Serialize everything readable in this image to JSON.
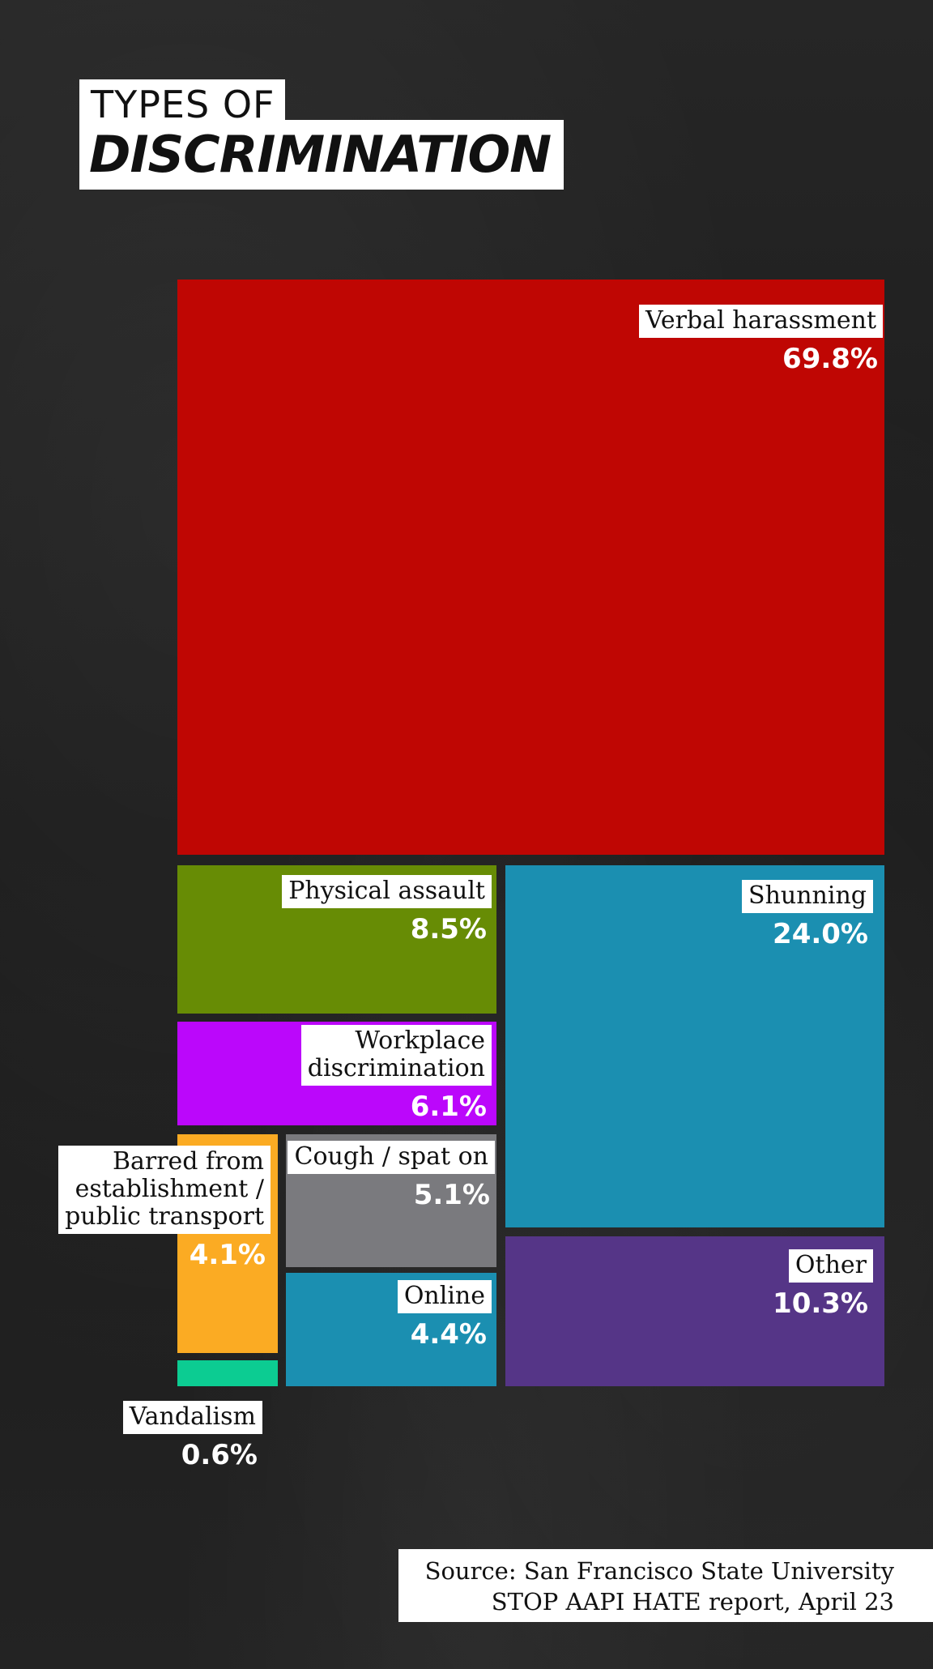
{
  "title": {
    "line1": "TYPES OF",
    "line2": "DISCRIMINATION"
  },
  "chart_data": {
    "type": "treemap",
    "title": "TYPES OF DISCRIMINATION",
    "unit": "%",
    "items": [
      {
        "id": "verbal",
        "name": "Verbal harassment",
        "value": 69.8,
        "value_label": "69.8%",
        "color": "#bf0603"
      },
      {
        "id": "physical",
        "name": "Physical assault",
        "value": 8.5,
        "value_label": "8.5%",
        "color": "#678c05"
      },
      {
        "id": "workplace",
        "name": "Workplace discrimination",
        "name_lines": [
          "Workplace",
          "discrimination"
        ],
        "value": 6.1,
        "value_label": "6.1%",
        "color": "#bb07fb"
      },
      {
        "id": "cough",
        "name": "Cough / spat on",
        "value": 5.1,
        "value_label": "5.1%",
        "color": "#7a7a7e"
      },
      {
        "id": "barred",
        "name": "Barred from establishment / public transport",
        "name_lines": [
          "Barred from",
          "establishment /",
          "public transport"
        ],
        "value": 4.1,
        "value_label": "4.1%",
        "color": "#fbab23"
      },
      {
        "id": "online",
        "name": "Online",
        "value": 4.4,
        "value_label": "4.4%",
        "color": "#1b8fb1"
      },
      {
        "id": "vandalism",
        "name": "Vandalism",
        "value": 0.6,
        "value_label": "0.6%",
        "color": "#0ccc92"
      },
      {
        "id": "shunning",
        "name": "Shunning",
        "value": 24.0,
        "value_label": "24.0%",
        "color": "#1b8fb1"
      },
      {
        "id": "other",
        "name": "Other",
        "value": 10.3,
        "value_label": "10.3%",
        "color": "#553587"
      }
    ]
  },
  "source": {
    "line1": "Source: San Francisco State University",
    "line2": "STOP AAPI HATE report, April 23"
  }
}
